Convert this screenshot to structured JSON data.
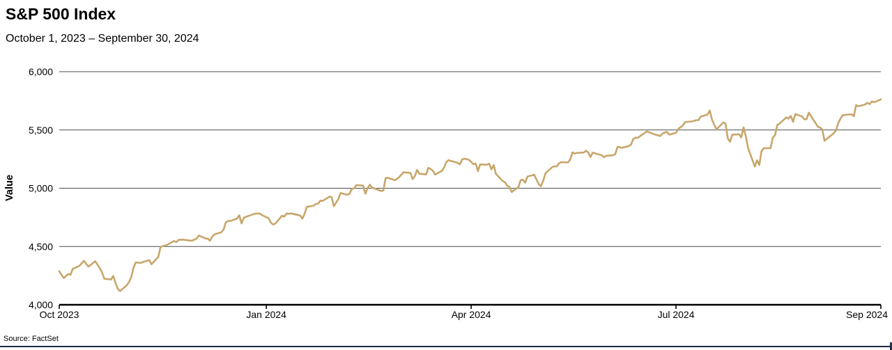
{
  "header": {
    "title": "S&P 500 Index",
    "subtitle": "October 1, 2023 – September 30, 2024"
  },
  "footer": {
    "source": "Source: FactSet"
  },
  "colors": {
    "line": "#C7A66B",
    "grid": "#4D4D4D",
    "axis": "#000000",
    "text": "#000000",
    "bottom_bar": "#1F2A44"
  },
  "chart_data": {
    "type": "line",
    "title": "S&P 500 Index",
    "subtitle": "October 1, 2023 – September 30, 2024",
    "xlabel": "",
    "ylabel": "Value",
    "ylim": [
      4000,
      6000
    ],
    "yticks": [
      4000,
      4500,
      5000,
      5500,
      6000
    ],
    "ytick_labels": [
      "4,000",
      "4,500",
      "5,000",
      "5,500",
      "6,000"
    ],
    "xlim_days": [
      0,
      365
    ],
    "xticks": [
      {
        "day": 0,
        "label": "Oct 2023"
      },
      {
        "day": 92,
        "label": "Jan 2024"
      },
      {
        "day": 183,
        "label": "Apr 2024"
      },
      {
        "day": 274,
        "label": "Jul 2024"
      },
      {
        "day": 336,
        "label": "Sep 2024"
      }
    ],
    "grid": true,
    "legend": "none",
    "line_color": "#C7A66B",
    "series": [
      {
        "name": "S&P 500 Index",
        "points": [
          [
            0,
            4288
          ],
          [
            2,
            4229
          ],
          [
            4,
            4263
          ],
          [
            5,
            4258
          ],
          [
            6,
            4308
          ],
          [
            9,
            4335
          ],
          [
            11,
            4377
          ],
          [
            12,
            4350
          ],
          [
            13,
            4328
          ],
          [
            16,
            4374
          ],
          [
            18,
            4315
          ],
          [
            19,
            4278
          ],
          [
            20,
            4224
          ],
          [
            23,
            4217
          ],
          [
            24,
            4247
          ],
          [
            25,
            4187
          ],
          [
            26,
            4137
          ],
          [
            27,
            4117
          ],
          [
            30,
            4167
          ],
          [
            31,
            4194
          ],
          [
            32,
            4238
          ],
          [
            33,
            4318
          ],
          [
            34,
            4364
          ],
          [
            36,
            4358
          ],
          [
            37,
            4366
          ],
          [
            39,
            4378
          ],
          [
            40,
            4383
          ],
          [
            41,
            4348
          ],
          [
            44,
            4411
          ],
          [
            45,
            4496
          ],
          [
            46,
            4503
          ],
          [
            47,
            4508
          ],
          [
            48,
            4514
          ],
          [
            51,
            4547
          ],
          [
            52,
            4538
          ],
          [
            53,
            4557
          ],
          [
            55,
            4559
          ],
          [
            58,
            4551
          ],
          [
            59,
            4550
          ],
          [
            61,
            4568
          ],
          [
            62,
            4594
          ],
          [
            65,
            4569
          ],
          [
            66,
            4567
          ],
          [
            67,
            4549
          ],
          [
            68,
            4585
          ],
          [
            69,
            4604
          ],
          [
            72,
            4622
          ],
          [
            73,
            4644
          ],
          [
            74,
            4707
          ],
          [
            75,
            4720
          ],
          [
            76,
            4719
          ],
          [
            79,
            4740
          ],
          [
            80,
            4768
          ],
          [
            81,
            4698
          ],
          [
            82,
            4747
          ],
          [
            83,
            4755
          ],
          [
            86,
            4775
          ],
          [
            87,
            4782
          ],
          [
            89,
            4783
          ],
          [
            90,
            4770
          ],
          [
            93,
            4743
          ],
          [
            94,
            4705
          ],
          [
            95,
            4689
          ],
          [
            96,
            4697
          ],
          [
            99,
            4764
          ],
          [
            100,
            4757
          ],
          [
            101,
            4783
          ],
          [
            102,
            4780
          ],
          [
            103,
            4784
          ],
          [
            107,
            4766
          ],
          [
            108,
            4739
          ],
          [
            109,
            4781
          ],
          [
            110,
            4840
          ],
          [
            113,
            4850
          ],
          [
            114,
            4865
          ],
          [
            115,
            4868
          ],
          [
            116,
            4894
          ],
          [
            117,
            4891
          ],
          [
            120,
            4928
          ],
          [
            121,
            4925
          ],
          [
            122,
            4846
          ],
          [
            124,
            4907
          ],
          [
            125,
            4959
          ],
          [
            128,
            4943
          ],
          [
            129,
            4954
          ],
          [
            130,
            4995
          ],
          [
            131,
            4998
          ],
          [
            132,
            5027
          ],
          [
            135,
            5022
          ],
          [
            136,
            4953
          ],
          [
            137,
            5001
          ],
          [
            138,
            5030
          ],
          [
            139,
            5006
          ],
          [
            143,
            4976
          ],
          [
            144,
            4981
          ],
          [
            145,
            5087
          ],
          [
            146,
            5089
          ],
          [
            149,
            5070
          ],
          [
            150,
            5078
          ],
          [
            151,
            5096
          ],
          [
            153,
            5137
          ],
          [
            156,
            5131
          ],
          [
            157,
            5079
          ],
          [
            158,
            5105
          ],
          [
            159,
            5157
          ],
          [
            160,
            5124
          ],
          [
            163,
            5118
          ],
          [
            164,
            5175
          ],
          [
            165,
            5165
          ],
          [
            166,
            5150
          ],
          [
            167,
            5117
          ],
          [
            170,
            5149
          ],
          [
            171,
            5179
          ],
          [
            172,
            5225
          ],
          [
            173,
            5241
          ],
          [
            174,
            5234
          ],
          [
            177,
            5218
          ],
          [
            178,
            5204
          ],
          [
            179,
            5248
          ],
          [
            180,
            5254
          ],
          [
            182,
            5244
          ],
          [
            184,
            5206
          ],
          [
            185,
            5212
          ],
          [
            186,
            5147
          ],
          [
            187,
            5204
          ],
          [
            190,
            5202
          ],
          [
            191,
            5210
          ],
          [
            192,
            5161
          ],
          [
            193,
            5199
          ],
          [
            194,
            5123
          ],
          [
            197,
            5062
          ],
          [
            198,
            5051
          ],
          [
            199,
            5022
          ],
          [
            200,
            5011
          ],
          [
            201,
            4967
          ],
          [
            204,
            5010
          ],
          [
            205,
            5070
          ],
          [
            206,
            5072
          ],
          [
            207,
            5048
          ],
          [
            208,
            5100
          ],
          [
            211,
            5116
          ],
          [
            213,
            5036
          ],
          [
            214,
            5018
          ],
          [
            215,
            5064
          ],
          [
            216,
            5128
          ],
          [
            219,
            5181
          ],
          [
            220,
            5188
          ],
          [
            221,
            5187
          ],
          [
            222,
            5214
          ],
          [
            223,
            5223
          ],
          [
            226,
            5221
          ],
          [
            227,
            5246
          ],
          [
            228,
            5308
          ],
          [
            229,
            5297
          ],
          [
            230,
            5303
          ],
          [
            233,
            5306
          ],
          [
            234,
            5321
          ],
          [
            235,
            5307
          ],
          [
            236,
            5268
          ],
          [
            237,
            5305
          ],
          [
            241,
            5283
          ],
          [
            242,
            5266
          ],
          [
            243,
            5278
          ],
          [
            246,
            5283
          ],
          [
            247,
            5291
          ],
          [
            248,
            5354
          ],
          [
            249,
            5353
          ],
          [
            250,
            5347
          ],
          [
            253,
            5361
          ],
          [
            254,
            5375
          ],
          [
            255,
            5421
          ],
          [
            256,
            5434
          ],
          [
            257,
            5432
          ],
          [
            260,
            5473
          ],
          [
            261,
            5487
          ],
          [
            263,
            5473
          ],
          [
            264,
            5465
          ],
          [
            267,
            5448
          ],
          [
            268,
            5469
          ],
          [
            269,
            5478
          ],
          [
            270,
            5483
          ],
          [
            271,
            5460
          ],
          [
            274,
            5475
          ],
          [
            275,
            5509
          ],
          [
            277,
            5537
          ],
          [
            278,
            5567
          ],
          [
            281,
            5573
          ],
          [
            282,
            5577
          ],
          [
            283,
            5584
          ],
          [
            284,
            5585
          ],
          [
            285,
            5615
          ],
          [
            288,
            5631
          ],
          [
            289,
            5667
          ],
          [
            290,
            5588
          ],
          [
            291,
            5544
          ],
          [
            292,
            5505
          ],
          [
            295,
            5564
          ],
          [
            296,
            5556
          ],
          [
            297,
            5427
          ],
          [
            298,
            5399
          ],
          [
            299,
            5459
          ],
          [
            302,
            5463
          ],
          [
            303,
            5436
          ],
          [
            304,
            5522
          ],
          [
            305,
            5446
          ],
          [
            306,
            5346
          ],
          [
            309,
            5186
          ],
          [
            310,
            5240
          ],
          [
            311,
            5200
          ],
          [
            312,
            5319
          ],
          [
            313,
            5344
          ],
          [
            316,
            5344
          ],
          [
            317,
            5434
          ],
          [
            318,
            5455
          ],
          [
            319,
            5543
          ],
          [
            320,
            5554
          ],
          [
            323,
            5608
          ],
          [
            324,
            5597
          ],
          [
            325,
            5620
          ],
          [
            326,
            5570
          ],
          [
            327,
            5635
          ],
          [
            330,
            5616
          ],
          [
            331,
            5592
          ],
          [
            332,
            5592
          ],
          [
            333,
            5648
          ],
          [
            337,
            5528
          ],
          [
            338,
            5520
          ],
          [
            339,
            5503
          ],
          [
            340,
            5408
          ],
          [
            344,
            5471
          ],
          [
            345,
            5495
          ],
          [
            346,
            5554
          ],
          [
            347,
            5595
          ],
          [
            348,
            5626
          ],
          [
            351,
            5633
          ],
          [
            352,
            5634
          ],
          [
            353,
            5618
          ],
          [
            354,
            5713
          ],
          [
            355,
            5703
          ],
          [
            358,
            5718
          ],
          [
            359,
            5733
          ],
          [
            360,
            5722
          ],
          [
            361,
            5745
          ],
          [
            362,
            5738
          ],
          [
            365,
            5762
          ]
        ]
      }
    ]
  }
}
